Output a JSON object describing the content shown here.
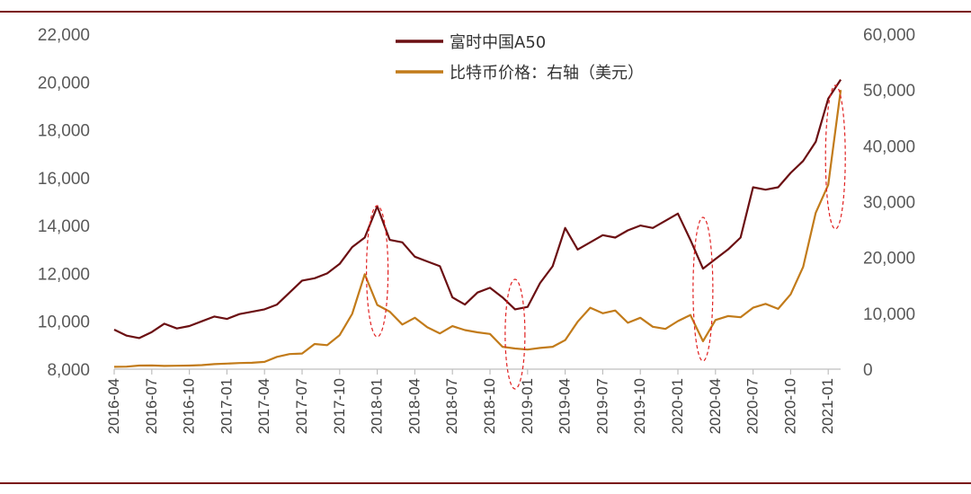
{
  "chart_data": {
    "type": "line",
    "title": "",
    "xlabel": "",
    "ylabel": "",
    "y_left": {
      "ylim": [
        8000,
        22000
      ],
      "ticks": [
        "8,000",
        "10,000",
        "12,000",
        "14,000",
        "16,000",
        "18,000",
        "20,000",
        "22,000"
      ]
    },
    "y_right": {
      "ylim": [
        0,
        60000
      ],
      "ticks": [
        "0",
        "10,000",
        "20,000",
        "30,000",
        "40,000",
        "50,000",
        "60,000"
      ]
    },
    "x_ticks": [
      "2016-04",
      "2016-07",
      "2016-10",
      "2017-01",
      "2017-04",
      "2017-07",
      "2017-10",
      "2018-01",
      "2018-04",
      "2018-07",
      "2018-10",
      "2019-01",
      "2019-04",
      "2019-07",
      "2019-10",
      "2020-01",
      "2020-04",
      "2020-07",
      "2020-10",
      "2021-01"
    ],
    "grid": false,
    "legend_position": "top-center",
    "series": [
      {
        "name": "富时中国A50",
        "axis": "left",
        "color": "#6b0f12",
        "x": [
          "2016-04",
          "2016-05",
          "2016-06",
          "2016-07",
          "2016-08",
          "2016-09",
          "2016-10",
          "2016-11",
          "2016-12",
          "2017-01",
          "2017-02",
          "2017-03",
          "2017-04",
          "2017-05",
          "2017-06",
          "2017-07",
          "2017-08",
          "2017-09",
          "2017-10",
          "2017-11",
          "2017-12",
          "2018-01",
          "2018-02",
          "2018-03",
          "2018-04",
          "2018-05",
          "2018-06",
          "2018-07",
          "2018-08",
          "2018-09",
          "2018-10",
          "2018-11",
          "2018-12",
          "2019-01",
          "2019-02",
          "2019-03",
          "2019-04",
          "2019-05",
          "2019-06",
          "2019-07",
          "2019-08",
          "2019-09",
          "2019-10",
          "2019-11",
          "2019-12",
          "2020-01",
          "2020-02",
          "2020-03",
          "2020-04",
          "2020-05",
          "2020-06",
          "2020-07",
          "2020-08",
          "2020-09",
          "2020-10",
          "2020-11",
          "2020-12",
          "2021-01",
          "2021-02"
        ],
        "values": [
          9650,
          9400,
          9300,
          9550,
          9900,
          9700,
          9800,
          10000,
          10200,
          10100,
          10300,
          10400,
          10500,
          10700,
          11200,
          11700,
          11800,
          12000,
          12400,
          13100,
          13500,
          14800,
          13400,
          13300,
          12700,
          12500,
          12300,
          11000,
          10700,
          11200,
          11400,
          11000,
          10500,
          10600,
          11600,
          12300,
          13900,
          13000,
          13300,
          13600,
          13500,
          13800,
          14000,
          13900,
          14200,
          14500,
          13400,
          12200,
          12600,
          13000,
          13500,
          15600,
          15500,
          15600,
          16200,
          16700,
          17500,
          19300,
          20100
        ]
      },
      {
        "name": "比特币价格：右轴（美元）",
        "axis": "right",
        "color": "#c27b1a",
        "x": [
          "2016-04",
          "2016-05",
          "2016-06",
          "2016-07",
          "2016-08",
          "2016-09",
          "2016-10",
          "2016-11",
          "2016-12",
          "2017-01",
          "2017-02",
          "2017-03",
          "2017-04",
          "2017-05",
          "2017-06",
          "2017-07",
          "2017-08",
          "2017-09",
          "2017-10",
          "2017-11",
          "2017-12",
          "2018-01",
          "2018-02",
          "2018-03",
          "2018-04",
          "2018-05",
          "2018-06",
          "2018-07",
          "2018-08",
          "2018-09",
          "2018-10",
          "2018-11",
          "2018-12",
          "2019-01",
          "2019-02",
          "2019-03",
          "2019-04",
          "2019-05",
          "2019-06",
          "2019-07",
          "2019-08",
          "2019-09",
          "2019-10",
          "2019-11",
          "2019-12",
          "2020-01",
          "2020-02",
          "2020-03",
          "2020-04",
          "2020-05",
          "2020-06",
          "2020-07",
          "2020-08",
          "2020-09",
          "2020-10",
          "2020-11",
          "2020-12",
          "2021-01",
          "2021-02"
        ],
        "values": [
          420,
          450,
          650,
          660,
          580,
          610,
          640,
          730,
          900,
          1000,
          1100,
          1150,
          1300,
          2200,
          2700,
          2800,
          4500,
          4300,
          6100,
          9900,
          17000,
          11500,
          10300,
          8000,
          9200,
          7500,
          6400,
          7700,
          7000,
          6600,
          6300,
          4000,
          3700,
          3500,
          3800,
          4000,
          5200,
          8500,
          11000,
          10000,
          10500,
          8300,
          9200,
          7600,
          7200,
          8600,
          9700,
          5000,
          8800,
          9500,
          9300,
          11000,
          11700,
          10800,
          13400,
          18300,
          28000,
          33000,
          50000
        ]
      }
    ],
    "annotations": [
      {
        "type": "dashed-ellipse",
        "around": "2018-01 peak",
        "color": "#e02020"
      },
      {
        "type": "dashed-ellipse",
        "around": "2018-12 trough",
        "color": "#e02020"
      },
      {
        "type": "dashed-ellipse",
        "around": "2020-03 drop",
        "color": "#e02020"
      },
      {
        "type": "dashed-ellipse",
        "around": "2021-01 rally",
        "color": "#e02020"
      }
    ]
  }
}
